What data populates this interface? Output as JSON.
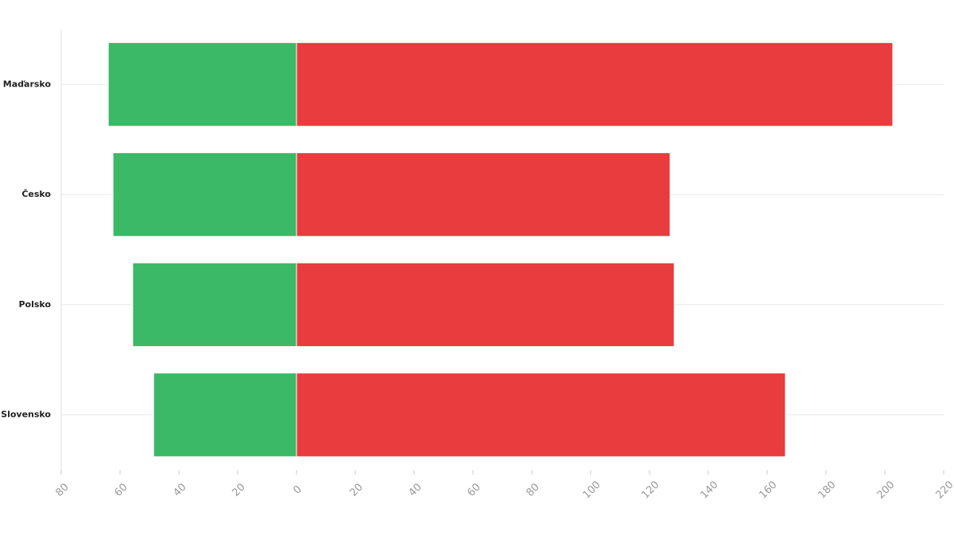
{
  "chart_data": {
    "type": "diverging-bar",
    "categories": [
      "Maďarsko",
      "Česko",
      "Polsko",
      "Slovensko"
    ],
    "series": [
      {
        "color": "#3bb966",
        "values": [
          -64,
          -62.4,
          -55.7,
          -48.6
        ]
      },
      {
        "color": "#e83c3e",
        "values": [
          202.7,
          127,
          128.4,
          166.2
        ]
      }
    ],
    "xlim": [
      -80,
      220
    ],
    "xticks": [
      {
        "value": -80,
        "label": "80"
      },
      {
        "value": -60,
        "label": "60"
      },
      {
        "value": -40,
        "label": "40"
      },
      {
        "value": -20,
        "label": "20"
      },
      0,
      20,
      40,
      60,
      80,
      100,
      120,
      140,
      160,
      180,
      200,
      220
    ],
    "grid": true
  }
}
